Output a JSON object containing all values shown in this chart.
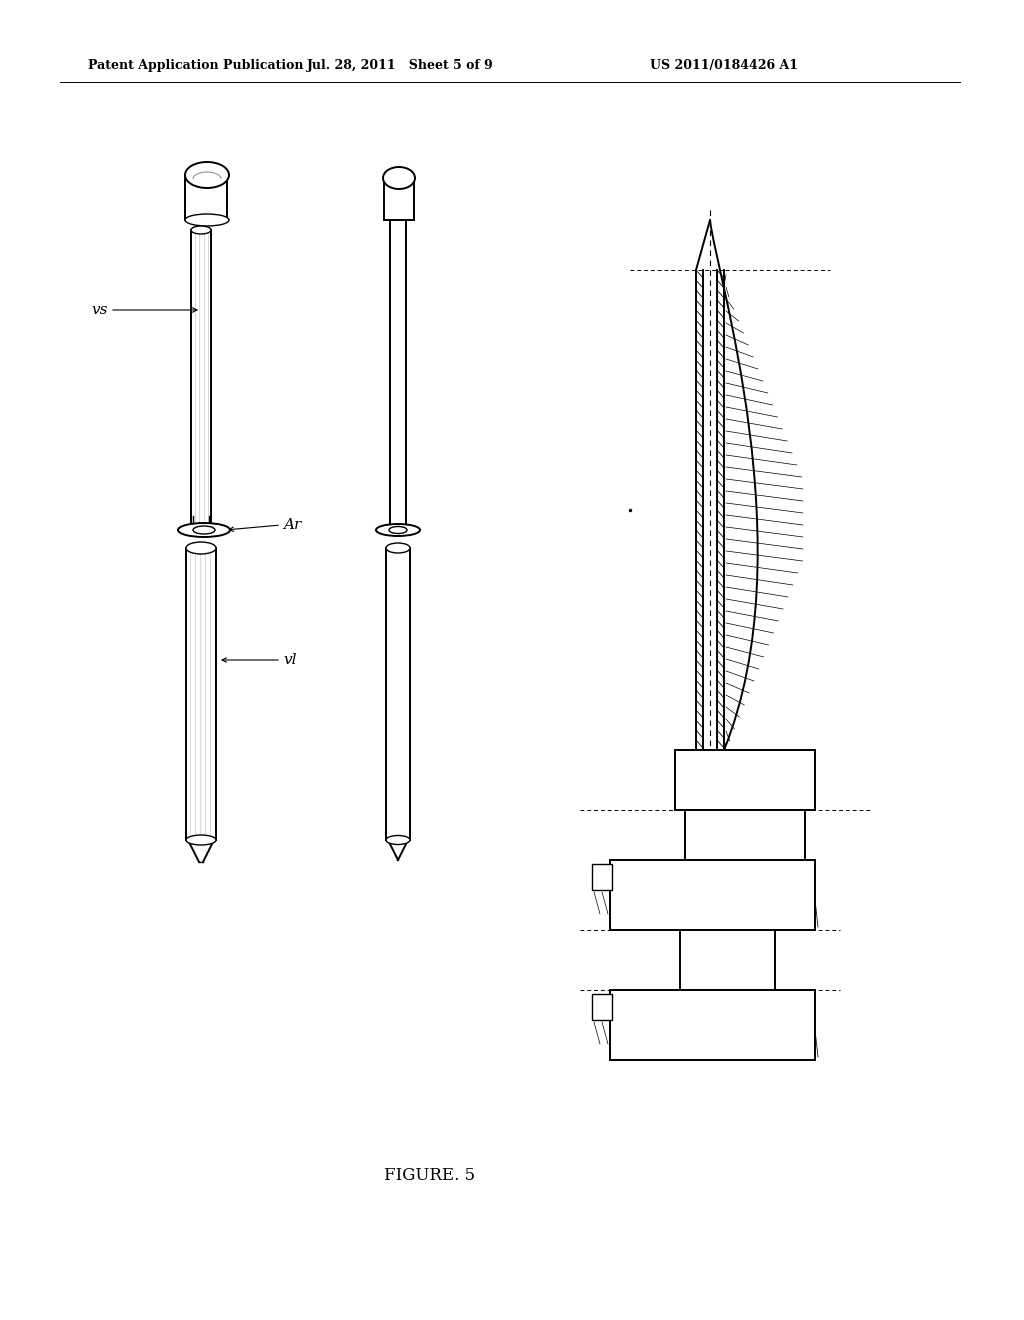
{
  "background_color": "#ffffff",
  "header_left": "Patent Application Publication",
  "header_center": "Jul. 28, 2011   Sheet 5 of 9",
  "header_right": "US 2011/0184426 A1",
  "figure_label": "FIGURE. 5",
  "label_vs": "vs",
  "label_ar": "Ar",
  "label_vl": "vl",
  "header_fontsize": 9,
  "label_fontsize": 11,
  "fig_label_fontsize": 12
}
